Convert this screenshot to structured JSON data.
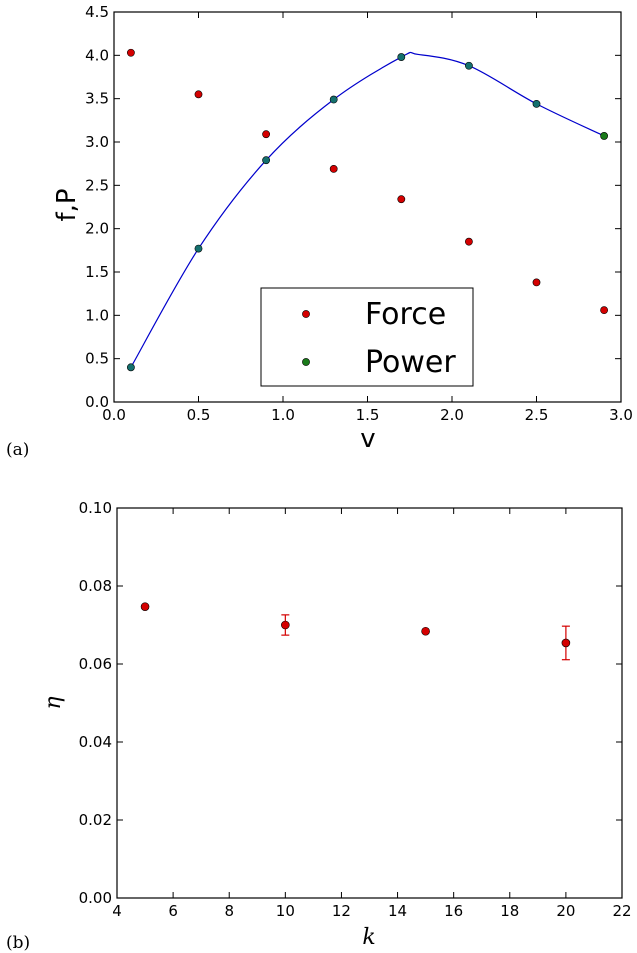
{
  "chart_data": [
    {
      "panel_label": "(a)",
      "type": "scatter",
      "xlabel": "v",
      "ylabel": "f,P",
      "xlim": [
        0.0,
        3.0
      ],
      "ylim": [
        0.0,
        4.5
      ],
      "x_ticks": [
        "0.0",
        "0.5",
        "1.0",
        "1.5",
        "2.0",
        "2.5",
        "3.0"
      ],
      "y_ticks": [
        "0.0",
        "0.5",
        "1.0",
        "1.5",
        "2.0",
        "2.5",
        "3.0",
        "3.5",
        "4.0",
        "4.5"
      ],
      "legend": {
        "placement": "lower-center"
      },
      "series": [
        {
          "name": "Force",
          "color": "#d40000",
          "marker": "circle",
          "x": [
            0.1,
            0.5,
            0.9,
            1.3,
            1.7,
            2.1,
            2.5,
            2.9
          ],
          "y": [
            4.03,
            3.55,
            3.09,
            2.69,
            2.34,
            1.85,
            1.38,
            1.06
          ]
        },
        {
          "name": "Power",
          "color": "#1a7a1a",
          "marker": "circle",
          "x": [
            0.1,
            0.5,
            0.9,
            1.3,
            1.7,
            2.1,
            2.5,
            2.9
          ],
          "y": [
            0.4,
            1.77,
            2.79,
            3.49,
            3.98,
            3.88,
            3.44,
            3.07
          ]
        },
        {
          "type": "line",
          "color": "#0000cc",
          "x": [
            0.1,
            0.5,
            0.9,
            1.3,
            1.7,
            1.8,
            2.1,
            2.5,
            2.9
          ],
          "y": [
            0.4,
            1.77,
            2.79,
            3.49,
            3.98,
            4.01,
            3.88,
            3.44,
            3.07
          ]
        }
      ]
    },
    {
      "panel_label": "(b)",
      "type": "scatter",
      "xlabel": "k",
      "ylabel": "η",
      "xlim": [
        4,
        22
      ],
      "ylim": [
        0.0,
        0.1
      ],
      "x_ticks": [
        "4",
        "6",
        "8",
        "10",
        "12",
        "14",
        "16",
        "18",
        "20",
        "22"
      ],
      "y_ticks": [
        "0.00",
        "0.02",
        "0.04",
        "0.06",
        "0.08",
        "0.10"
      ],
      "series": [
        {
          "color": "#d40000",
          "marker": "circle",
          "x": [
            5,
            10,
            15,
            20
          ],
          "y": [
            0.0747,
            0.07,
            0.0684,
            0.0654
          ],
          "yerr": [
            0.0,
            0.0026,
            0.0,
            0.0043
          ]
        }
      ]
    }
  ]
}
